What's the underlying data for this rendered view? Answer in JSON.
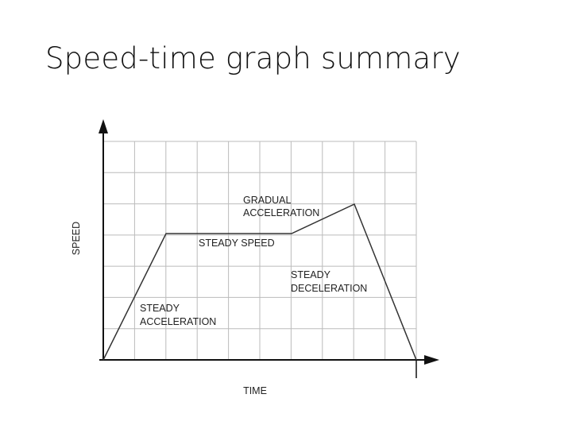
{
  "title": "Speed-time graph summary",
  "graph": {
    "y_axis_label": "SPEED",
    "x_axis_label": "TIME",
    "annotations": [
      {
        "lines": [
          "GRADUAL",
          "ACCELERATION"
        ]
      },
      {
        "lines": [
          "STEADY SPEED"
        ]
      },
      {
        "lines": [
          "STEADY",
          "DECELERATION"
        ]
      },
      {
        "lines": [
          "STEADY",
          "ACCELERATION"
        ]
      }
    ]
  }
}
